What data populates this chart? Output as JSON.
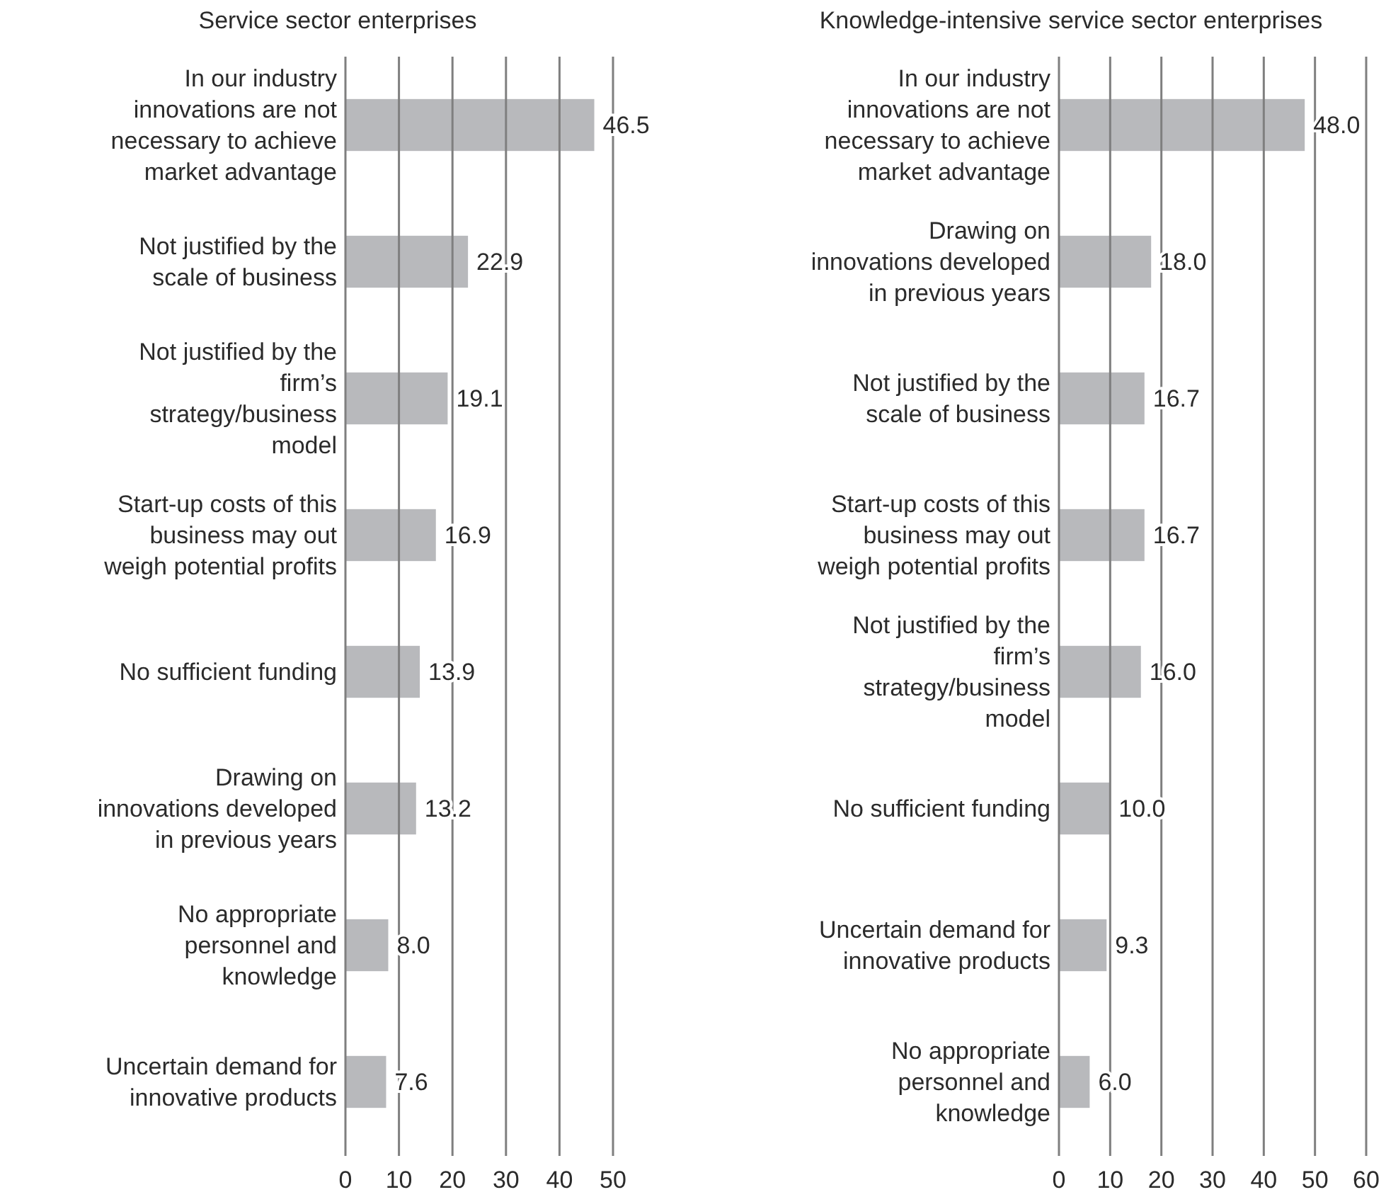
{
  "chart_data": [
    {
      "type": "bar",
      "orientation": "horizontal",
      "title": "Service sector enterprises",
      "categories": [
        "In our industry innovations are not necessary to achieve market advantage",
        "Not justified by the scale of business",
        "Not justified by the firm’s strategy/business model",
        "Start-up costs of this business may out weigh potential profits",
        "No sufficient funding",
        "Drawing on innovations developed in previous years",
        "No appropriate personnel and knowledge",
        "Uncertain demand for innovative products"
      ],
      "values": [
        46.5,
        22.9,
        19.1,
        16.9,
        13.9,
        13.2,
        8.0,
        7.6
      ],
      "value_labels": [
        "46.5",
        "22.9",
        "19.1",
        "16.9",
        "13.9",
        "13.2",
        "8.0",
        "7.6"
      ],
      "color": "#b8b9bc",
      "xlim": [
        0,
        50
      ],
      "xticks": [
        0,
        10,
        20,
        30,
        40,
        50
      ],
      "grid": "x"
    },
    {
      "type": "bar",
      "orientation": "horizontal",
      "title": "Knowledge-intensive service sector enterprises",
      "categories": [
        "In our industry innovations are not necessary to achieve market advantage",
        "Drawing on innovations developed in previous years",
        "Not justified by the scale of business",
        "Start-up costs of this business may out weigh potential profits",
        "Not justified by the firm’s strategy/business model",
        "No sufficient funding",
        "Uncertain demand for innovative products",
        "No appropriate personnel and knowledge"
      ],
      "values": [
        48.0,
        18.0,
        16.7,
        16.7,
        16.0,
        10.0,
        9.3,
        6.0
      ],
      "value_labels": [
        "48.0",
        "18.0",
        "16.7",
        "16.7",
        "16.0",
        "10.0",
        "9.3",
        "6.0"
      ],
      "color": "#b8b9bc",
      "xlim": [
        0,
        60
      ],
      "xticks": [
        0,
        10,
        20,
        30,
        40,
        50,
        60
      ],
      "grid": "x"
    }
  ]
}
